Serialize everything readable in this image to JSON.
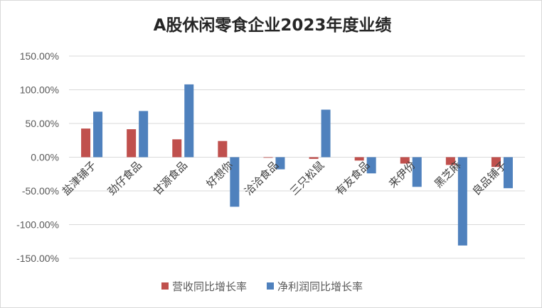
{
  "chart_data": {
    "type": "bar",
    "title": "A股休闲零食企业2023年度业绩",
    "categories": [
      "盐津铺子",
      "劲仔食品",
      "甘源食品",
      "好想你",
      "洽洽食品",
      "三只松鼠",
      "有友食品",
      "来伊份",
      "黑芝麻",
      "良品铺子"
    ],
    "series": [
      {
        "name": "营收同比增长率",
        "color": "#c0504d",
        "values": [
          42.5,
          41.5,
          26.5,
          24.0,
          -0.5,
          -2.5,
          -5.0,
          -9.5,
          -11.5,
          -14.5
        ]
      },
      {
        "name": "净利润同比增长率",
        "color": "#4f81bd",
        "values": [
          67.5,
          68.5,
          108.0,
          -73.5,
          -18.0,
          70.5,
          -24.0,
          -44.0,
          -131.0,
          -46.0
        ]
      }
    ],
    "ylim": [
      -150,
      150
    ],
    "yticks": [
      150,
      100,
      50,
      0,
      -50,
      -100,
      -150
    ],
    "ytick_labels": [
      "150.00%",
      "100.00%",
      "50.00%",
      "0.00%",
      "-50.00%",
      "-100.00%",
      "-150.00%"
    ],
    "grid": true,
    "legend": "bottom"
  }
}
